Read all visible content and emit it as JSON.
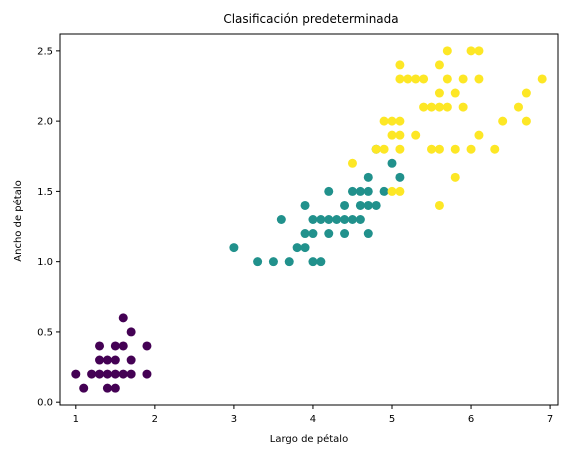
{
  "chart_data": {
    "type": "scatter",
    "title": "Clasificación predeterminada",
    "xlabel": "Largo de pétalo",
    "ylabel": "Ancho de pétalo",
    "xlim": [
      0.8,
      7.1
    ],
    "ylim": [
      -0.02,
      2.62
    ],
    "xticks": [
      1,
      2,
      3,
      4,
      5,
      6,
      7
    ],
    "yticks": [
      0.0,
      0.5,
      1.0,
      1.5,
      2.0,
      2.5
    ],
    "xtick_labels": [
      "1",
      "2",
      "3",
      "4",
      "5",
      "6",
      "7"
    ],
    "ytick_labels": [
      "0.0",
      "0.5",
      "1.0",
      "1.5",
      "2.0",
      "2.5"
    ],
    "grid": false,
    "series": [
      {
        "color": "#440154",
        "points": [
          [
            1.0,
            0.2
          ],
          [
            1.1,
            0.1
          ],
          [
            1.2,
            0.2
          ],
          [
            1.3,
            0.2
          ],
          [
            1.3,
            0.3
          ],
          [
            1.3,
            0.4
          ],
          [
            1.4,
            0.1
          ],
          [
            1.4,
            0.2
          ],
          [
            1.4,
            0.3
          ],
          [
            1.5,
            0.1
          ],
          [
            1.5,
            0.2
          ],
          [
            1.5,
            0.3
          ],
          [
            1.5,
            0.4
          ],
          [
            1.6,
            0.2
          ],
          [
            1.6,
            0.4
          ],
          [
            1.6,
            0.6
          ],
          [
            1.7,
            0.2
          ],
          [
            1.7,
            0.3
          ],
          [
            1.7,
            0.5
          ],
          [
            1.9,
            0.2
          ],
          [
            1.9,
            0.4
          ]
        ]
      },
      {
        "color": "#21918c",
        "points": [
          [
            3.0,
            1.1
          ],
          [
            3.3,
            1.0
          ],
          [
            3.5,
            1.0
          ],
          [
            3.6,
            1.3
          ],
          [
            3.7,
            1.0
          ],
          [
            3.8,
            1.1
          ],
          [
            3.9,
            1.1
          ],
          [
            3.9,
            1.2
          ],
          [
            3.9,
            1.4
          ],
          [
            4.0,
            1.0
          ],
          [
            4.0,
            1.2
          ],
          [
            4.0,
            1.3
          ],
          [
            4.1,
            1.0
          ],
          [
            4.1,
            1.3
          ],
          [
            4.2,
            1.2
          ],
          [
            4.2,
            1.3
          ],
          [
            4.2,
            1.5
          ],
          [
            4.3,
            1.3
          ],
          [
            4.4,
            1.2
          ],
          [
            4.4,
            1.3
          ],
          [
            4.4,
            1.4
          ],
          [
            4.5,
            1.3
          ],
          [
            4.5,
            1.5
          ],
          [
            4.6,
            1.3
          ],
          [
            4.6,
            1.4
          ],
          [
            4.6,
            1.5
          ],
          [
            4.7,
            1.2
          ],
          [
            4.7,
            1.4
          ],
          [
            4.7,
            1.5
          ],
          [
            4.7,
            1.6
          ],
          [
            4.8,
            1.4
          ],
          [
            4.8,
            1.8
          ],
          [
            4.9,
            1.5
          ],
          [
            5.0,
            1.7
          ],
          [
            5.1,
            1.6
          ]
        ]
      },
      {
        "color": "#fde725",
        "points": [
          [
            4.5,
            1.7
          ],
          [
            4.8,
            1.8
          ],
          [
            4.9,
            1.8
          ],
          [
            4.9,
            2.0
          ],
          [
            5.0,
            1.5
          ],
          [
            5.0,
            1.9
          ],
          [
            5.0,
            2.0
          ],
          [
            5.1,
            1.5
          ],
          [
            5.1,
            1.8
          ],
          [
            5.1,
            1.9
          ],
          [
            5.1,
            2.0
          ],
          [
            5.1,
            2.3
          ],
          [
            5.1,
            2.4
          ],
          [
            5.2,
            2.3
          ],
          [
            5.3,
            1.9
          ],
          [
            5.3,
            2.3
          ],
          [
            5.4,
            2.1
          ],
          [
            5.4,
            2.3
          ],
          [
            5.5,
            1.8
          ],
          [
            5.5,
            2.1
          ],
          [
            5.6,
            1.4
          ],
          [
            5.6,
            1.8
          ],
          [
            5.6,
            2.1
          ],
          [
            5.6,
            2.2
          ],
          [
            5.6,
            2.4
          ],
          [
            5.7,
            2.1
          ],
          [
            5.7,
            2.3
          ],
          [
            5.7,
            2.5
          ],
          [
            5.8,
            1.6
          ],
          [
            5.8,
            1.8
          ],
          [
            5.8,
            2.2
          ],
          [
            5.9,
            2.1
          ],
          [
            5.9,
            2.3
          ],
          [
            6.0,
            1.8
          ],
          [
            6.0,
            2.5
          ],
          [
            6.1,
            1.9
          ],
          [
            6.1,
            2.3
          ],
          [
            6.1,
            2.5
          ],
          [
            6.3,
            1.8
          ],
          [
            6.4,
            2.0
          ],
          [
            6.6,
            2.1
          ],
          [
            6.7,
            2.0
          ],
          [
            6.7,
            2.2
          ],
          [
            6.9,
            2.3
          ]
        ]
      }
    ]
  }
}
